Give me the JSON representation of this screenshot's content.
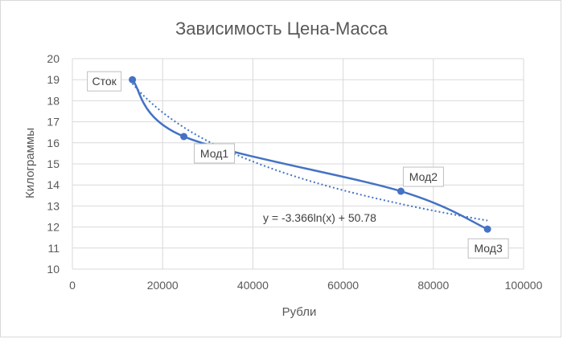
{
  "chart_data": {
    "type": "scatter",
    "title": "Зависимость Цена-Масса",
    "xlabel": "Рубли",
    "ylabel": "Килограммы",
    "xlim": [
      0,
      100000
    ],
    "ylim": [
      10,
      20
    ],
    "x_ticks": [
      "0",
      "20000",
      "40000",
      "60000",
      "80000",
      "100000"
    ],
    "y_ticks": [
      "10",
      "11",
      "12",
      "13",
      "14",
      "15",
      "16",
      "17",
      "18",
      "19",
      "20"
    ],
    "grid": true,
    "colors": {
      "series": "#4472c4",
      "grid": "#d9d9d9",
      "text": "#595959"
    },
    "points": [
      {
        "label": "Сток",
        "x": 13300,
        "y": 19.0
      },
      {
        "label": "Мод1",
        "x": 24700,
        "y": 16.3
      },
      {
        "label": "Мод2",
        "x": 72800,
        "y": 13.7
      },
      {
        "label": "Мод3",
        "x": 92000,
        "y": 11.9
      }
    ],
    "trendline": {
      "type": "logarithmic",
      "a": -3.366,
      "b": 50.78,
      "equation": "y = -3.366ln(x) + 50.78"
    }
  }
}
